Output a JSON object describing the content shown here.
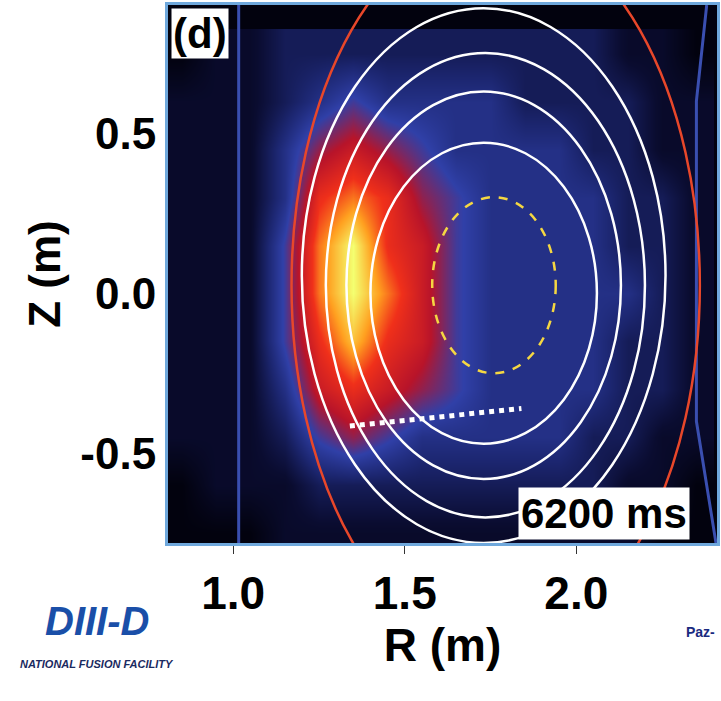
{
  "chart_data": {
    "type": "heatmap",
    "x_label": "R (m)",
    "y_label": "Z (m)",
    "annotations": [
      "(d)",
      "6200 ms",
      "DIII-D",
      "NATIONAL FUSION FACILITY",
      "Paz-"
    ],
    "xlim": [
      0.81,
      2.41
    ],
    "ylim": [
      -0.78,
      0.9
    ],
    "xticks": [
      {
        "value": 1.0,
        "label": "1.0"
      },
      1.5,
      {
        "value": 2.0,
        "label": "2.0"
      }
    ],
    "yticks": [
      -0.5,
      {
        "value": 0.0,
        "label": "0.0"
      },
      0.5
    ],
    "grid": false,
    "x": [
      0.85,
      0.95,
      1.05,
      1.15,
      1.25,
      1.35,
      1.45,
      1.55,
      1.65,
      1.75,
      1.85,
      1.95,
      2.05,
      2.15,
      2.25,
      2.35
    ],
    "y": [
      -0.75,
      -0.6,
      -0.45,
      -0.3,
      -0.15,
      0.0,
      0.15,
      0.3,
      0.45,
      0.6,
      0.75
    ],
    "z": [
      [
        0,
        0,
        0,
        1,
        1,
        1,
        1,
        1,
        1,
        1,
        1,
        1,
        1,
        1,
        0,
        0
      ],
      [
        0,
        1,
        1,
        1,
        2,
        2,
        2,
        2,
        2,
        2,
        2,
        2,
        2,
        1,
        1,
        0
      ],
      [
        1,
        1,
        1,
        2,
        4,
        5,
        4,
        3,
        3,
        3,
        3,
        3,
        2,
        2,
        1,
        1
      ],
      [
        1,
        1,
        1,
        3,
        6,
        7,
        6,
        5,
        4,
        3,
        3,
        3,
        3,
        2,
        2,
        1
      ],
      [
        1,
        1,
        1,
        4,
        7,
        9,
        7,
        6,
        4,
        3,
        3,
        3,
        3,
        2,
        2,
        1
      ],
      [
        1,
        1,
        1,
        4,
        8,
        10,
        8,
        6,
        4,
        3,
        3,
        3,
        3,
        3,
        2,
        1
      ],
      [
        1,
        1,
        1,
        4,
        8,
        10,
        7,
        6,
        4,
        3,
        3,
        3,
        3,
        2,
        2,
        1
      ],
      [
        1,
        1,
        1,
        3,
        7,
        8,
        7,
        5,
        4,
        3,
        3,
        3,
        3,
        2,
        2,
        1
      ],
      [
        1,
        1,
        1,
        3,
        5,
        6,
        5,
        4,
        3,
        3,
        3,
        3,
        2,
        2,
        1,
        1
      ],
      [
        1,
        1,
        1,
        2,
        3,
        4,
        3,
        3,
        3,
        3,
        2,
        2,
        2,
        2,
        1,
        1
      ],
      [
        0,
        1,
        1,
        2,
        2,
        2,
        2,
        2,
        2,
        2,
        2,
        2,
        2,
        1,
        1,
        0
      ]
    ],
    "z_range": [
      0,
      10
    ],
    "contours": [
      {
        "x0": 1.17,
        "x1": 2.36,
        "y0": -1.1,
        "y1": 1.15,
        "color": "#e8472a",
        "line_style": "solid"
      },
      {
        "x0": 1.2,
        "x1": 2.26,
        "y0": -0.78,
        "y1": 0.89,
        "color": "#ffffff",
        "line_style": "solid"
      },
      {
        "x0": 1.27,
        "x1": 2.2,
        "y0": -0.7,
        "y1": 0.75,
        "color": "#ffffff",
        "line_style": "solid"
      },
      {
        "x0": 1.33,
        "x1": 2.13,
        "y0": -0.58,
        "y1": 0.63,
        "color": "#ffffff",
        "line_style": "solid"
      },
      {
        "x0": 1.4,
        "x1": 2.06,
        "y0": -0.47,
        "y1": 0.47,
        "color": "#ffffff",
        "line_style": "solid"
      },
      {
        "x0": 1.58,
        "x1": 1.94,
        "y0": -0.25,
        "y1": 0.3,
        "color": "#f5d742",
        "line_style": "dash"
      }
    ],
    "lines": [
      {
        "x": [
          1.016,
          1.016
        ],
        "y": [
          -0.78,
          0.9
        ],
        "color": "#3a4fb0",
        "line_style": "solid"
      },
      {
        "x": [
          2.38,
          2.35,
          2.35,
          2.41
        ],
        "y": [
          0.9,
          0.6,
          -0.4,
          -0.8
        ],
        "color": "#3a4fb0",
        "line_style": "solid"
      },
      {
        "x": [
          1.34,
          1.84
        ],
        "y": [
          -0.415,
          -0.36
        ],
        "color": "#ffffff",
        "line_style": "dot"
      }
    ]
  }
}
